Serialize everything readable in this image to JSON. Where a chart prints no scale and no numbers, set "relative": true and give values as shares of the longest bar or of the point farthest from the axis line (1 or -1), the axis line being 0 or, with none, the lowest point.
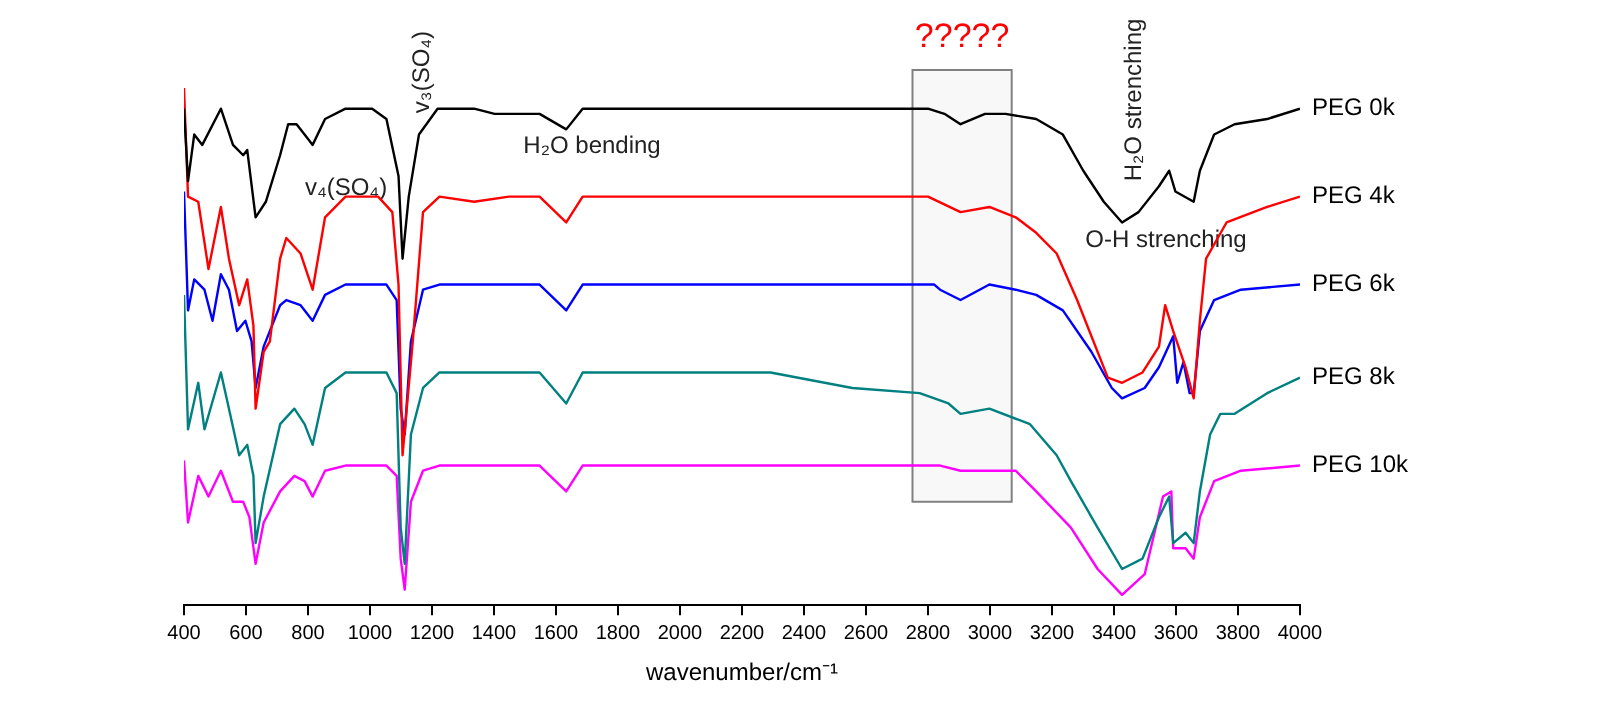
{
  "chart_data": {
    "type": "line",
    "xlabel": "wavenumber/cm⁻¹",
    "relative": true,
    "xlim": [
      400,
      4000
    ],
    "xticks": [
      400,
      600,
      800,
      1000,
      1200,
      1400,
      1600,
      1800,
      2000,
      2200,
      2400,
      2600,
      2800,
      3000,
      3200,
      3400,
      3600,
      3800,
      4000
    ],
    "grid": false,
    "series": [
      {
        "name": "PEG 0k",
        "color": "#000000",
        "x": [
          400,
          413,
          433,
          459,
          519,
          558,
          591,
          604,
          631,
          664,
          710,
          736,
          763,
          789,
          815,
          855,
          921,
          1007,
          1053,
          1092,
          1105,
          1125,
          1158,
          1218,
          1336,
          1402,
          1488,
          1547,
          1633,
          1686,
          1897,
          2358,
          2800,
          2853,
          2905,
          2984,
          3050,
          3149,
          3235,
          3301,
          3367,
          3426,
          3479,
          3545,
          3578,
          3598,
          3657,
          3677,
          3723,
          3789,
          3894,
          4000
        ],
        "values": [
          0.96,
          0.82,
          0.91,
          0.89,
          0.96,
          0.89,
          0.87,
          0.88,
          0.75,
          0.78,
          0.87,
          0.93,
          0.93,
          0.91,
          0.89,
          0.94,
          0.96,
          0.96,
          0.94,
          0.83,
          0.67,
          0.79,
          0.91,
          0.96,
          0.96,
          0.95,
          0.95,
          0.95,
          0.92,
          0.96,
          0.96,
          0.96,
          0.96,
          0.95,
          0.93,
          0.95,
          0.95,
          0.94,
          0.91,
          0.84,
          0.78,
          0.74,
          0.76,
          0.81,
          0.84,
          0.8,
          0.78,
          0.84,
          0.91,
          0.93,
          0.94,
          0.96
        ]
      },
      {
        "name": "PEG 4k",
        "color": "#ff0000",
        "x": [
          400,
          413,
          446,
          479,
          519,
          545,
          578,
          604,
          624,
          631,
          657,
          677,
          710,
          730,
          776,
          815,
          855,
          921,
          1026,
          1072,
          1092,
          1105,
          1138,
          1171,
          1224,
          1336,
          1448,
          1547,
          1633,
          1686,
          2358,
          2800,
          2905,
          2998,
          3083,
          3149,
          3215,
          3281,
          3380,
          3426,
          3492,
          3545,
          3565,
          3591,
          3631,
          3657,
          3677,
          3697,
          3763,
          3894,
          4000
        ],
        "values": [
          1.0,
          0.79,
          0.78,
          0.65,
          0.77,
          0.67,
          0.58,
          0.63,
          0.54,
          0.38,
          0.49,
          0.51,
          0.67,
          0.71,
          0.68,
          0.61,
          0.75,
          0.79,
          0.79,
          0.76,
          0.62,
          0.29,
          0.51,
          0.76,
          0.79,
          0.78,
          0.79,
          0.79,
          0.74,
          0.79,
          0.79,
          0.79,
          0.76,
          0.77,
          0.75,
          0.72,
          0.68,
          0.59,
          0.44,
          0.43,
          0.45,
          0.5,
          0.58,
          0.53,
          0.46,
          0.4,
          0.55,
          0.67,
          0.74,
          0.77,
          0.79
        ]
      },
      {
        "name": "PEG 6k",
        "color": "#0000ff",
        "x": [
          400,
          413,
          433,
          466,
          492,
          519,
          545,
          571,
          598,
          618,
          631,
          657,
          710,
          730,
          776,
          815,
          855,
          921,
          1053,
          1086,
          1099,
          1112,
          1132,
          1171,
          1224,
          1547,
          1633,
          1686,
          2820,
          2839,
          2905,
          2998,
          3083,
          3149,
          3235,
          3327,
          3393,
          3426,
          3499,
          3545,
          3591,
          3604,
          3624,
          3644,
          3657,
          3677,
          3723,
          3809,
          4000
        ],
        "values": [
          0.8,
          0.57,
          0.63,
          0.61,
          0.55,
          0.64,
          0.61,
          0.53,
          0.55,
          0.51,
          0.42,
          0.5,
          0.58,
          0.59,
          0.58,
          0.55,
          0.6,
          0.62,
          0.62,
          0.59,
          0.38,
          0.33,
          0.51,
          0.61,
          0.62,
          0.62,
          0.57,
          0.62,
          0.62,
          0.61,
          0.59,
          0.62,
          0.61,
          0.6,
          0.57,
          0.49,
          0.42,
          0.4,
          0.42,
          0.46,
          0.52,
          0.43,
          0.47,
          0.41,
          0.41,
          0.53,
          0.59,
          0.61,
          0.62
        ]
      },
      {
        "name": "PEG 8k",
        "color": "#008080",
        "x": [
          400,
          413,
          446,
          466,
          519,
          545,
          578,
          604,
          624,
          631,
          657,
          710,
          756,
          789,
          815,
          855,
          921,
          1053,
          1086,
          1099,
          1112,
          1132,
          1171,
          1224,
          1547,
          1633,
          1686,
          2292,
          2556,
          2773,
          2866,
          2905,
          2998,
          3129,
          3215,
          3261,
          3347,
          3426,
          3492,
          3545,
          3578,
          3591,
          3631,
          3657,
          3677,
          3710,
          3743,
          3789,
          3894,
          4000
        ],
        "values": [
          0.6,
          0.34,
          0.43,
          0.34,
          0.45,
          0.38,
          0.29,
          0.31,
          0.25,
          0.12,
          0.21,
          0.35,
          0.38,
          0.35,
          0.31,
          0.42,
          0.45,
          0.45,
          0.41,
          0.15,
          0.08,
          0.33,
          0.42,
          0.45,
          0.45,
          0.39,
          0.45,
          0.45,
          0.42,
          0.41,
          0.39,
          0.37,
          0.38,
          0.35,
          0.29,
          0.24,
          0.15,
          0.07,
          0.09,
          0.17,
          0.21,
          0.12,
          0.14,
          0.12,
          0.22,
          0.33,
          0.37,
          0.37,
          0.41,
          0.44
        ]
      },
      {
        "name": "PEG 10k",
        "color": "#ff00ff",
        "x": [
          400,
          413,
          446,
          479,
          519,
          558,
          591,
          611,
          631,
          657,
          710,
          756,
          789,
          815,
          855,
          921,
          1053,
          1086,
          1099,
          1112,
          1132,
          1171,
          1224,
          1547,
          1633,
          1686,
          2839,
          2905,
          2971,
          2998,
          3083,
          3149,
          3261,
          3347,
          3426,
          3499,
          3558,
          3585,
          3591,
          3631,
          3657,
          3677,
          3723,
          3809,
          4000
        ],
        "values": [
          0.28,
          0.16,
          0.25,
          0.21,
          0.26,
          0.2,
          0.2,
          0.17,
          0.08,
          0.16,
          0.22,
          0.25,
          0.24,
          0.21,
          0.26,
          0.27,
          0.27,
          0.25,
          0.09,
          0.03,
          0.2,
          0.26,
          0.27,
          0.27,
          0.22,
          0.27,
          0.27,
          0.26,
          0.26,
          0.26,
          0.26,
          0.22,
          0.15,
          0.07,
          0.02,
          0.06,
          0.21,
          0.22,
          0.11,
          0.11,
          0.09,
          0.17,
          0.24,
          0.26,
          0.27
        ]
      }
    ],
    "bands": [
      {
        "axis": "x",
        "from": 2750,
        "to": 3070,
        "label": "?????",
        "color": "#808080"
      }
    ],
    "annotations": [
      "v₄(SO₄)",
      "v₃(SO₄)",
      "H₂O bending",
      "H₂O strenching",
      "O-H strenching"
    ]
  }
}
